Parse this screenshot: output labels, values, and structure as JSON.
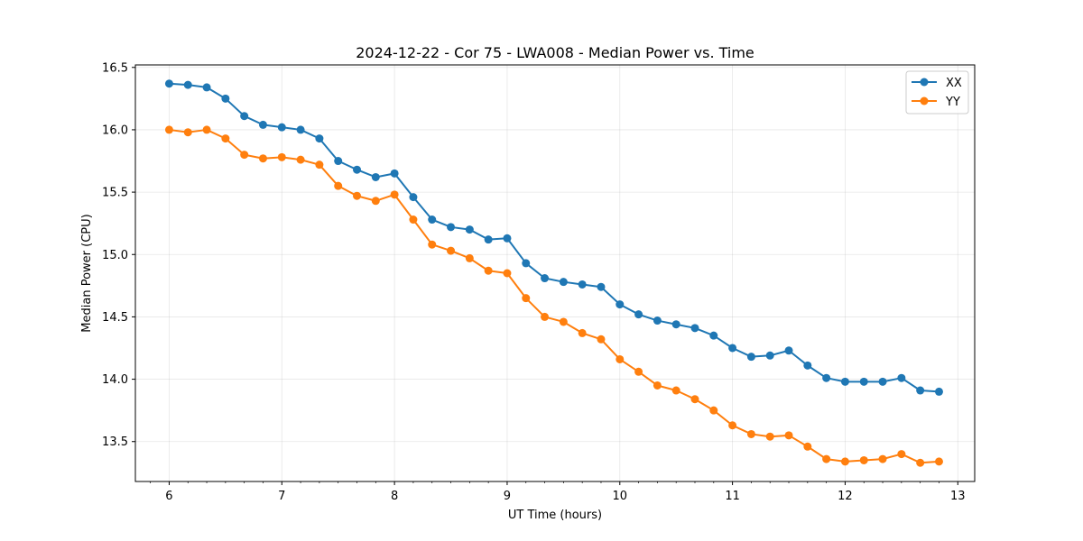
{
  "chart_data": {
    "type": "line",
    "title": "2024-12-22 - Cor 75 - LWA008 - Median Power vs. Time",
    "xlabel": "UT Time (hours)",
    "ylabel": "Median Power (CPU)",
    "xlim": [
      5.7,
      13.15
    ],
    "ylim": [
      13.18,
      16.52
    ],
    "xticks": [
      6,
      7,
      8,
      9,
      10,
      11,
      12,
      13
    ],
    "xtick_labels": [
      "6",
      "7",
      "8",
      "9",
      "10",
      "11",
      "12",
      "13"
    ],
    "yticks": [
      13.5,
      14.0,
      14.5,
      15.0,
      15.5,
      16.0,
      16.5
    ],
    "ytick_labels": [
      "13.5",
      "14.0",
      "14.5",
      "15.0",
      "15.5",
      "16.0",
      "16.5"
    ],
    "grid": true,
    "legend_position": "top-right",
    "x": [
      6.0,
      6.1667,
      6.3333,
      6.5,
      6.6667,
      6.8333,
      7.0,
      7.1667,
      7.3333,
      7.5,
      7.6667,
      7.8333,
      8.0,
      8.1667,
      8.3333,
      8.5,
      8.6667,
      8.8333,
      9.0,
      9.1667,
      9.3333,
      9.5,
      9.6667,
      9.8333,
      10.0,
      10.1667,
      10.3333,
      10.5,
      10.6667,
      10.8333,
      11.0,
      11.1667,
      11.3333,
      11.5,
      11.6667,
      11.8333,
      12.0,
      12.1667,
      12.3333,
      12.5,
      12.6667,
      12.8333
    ],
    "series": [
      {
        "name": "XX",
        "color": "#1f77b4",
        "values": [
          16.37,
          16.36,
          16.34,
          16.25,
          16.11,
          16.04,
          16.02,
          16.0,
          15.93,
          15.75,
          15.68,
          15.62,
          15.65,
          15.46,
          15.28,
          15.22,
          15.2,
          15.12,
          15.13,
          14.93,
          14.81,
          14.78,
          14.76,
          14.74,
          14.6,
          14.52,
          14.47,
          14.44,
          14.41,
          14.35,
          14.25,
          14.18,
          14.19,
          14.23,
          14.11,
          14.01,
          13.98,
          13.98,
          13.98,
          14.01,
          13.91,
          13.9
        ]
      },
      {
        "name": "YY",
        "color": "#ff7f0e",
        "values": [
          16.0,
          15.98,
          16.0,
          15.93,
          15.8,
          15.77,
          15.78,
          15.76,
          15.72,
          15.55,
          15.47,
          15.43,
          15.48,
          15.28,
          15.08,
          15.03,
          14.97,
          14.87,
          14.85,
          14.65,
          14.5,
          14.46,
          14.37,
          14.32,
          14.16,
          14.06,
          13.95,
          13.91,
          13.84,
          13.75,
          13.63,
          13.56,
          13.54,
          13.55,
          13.46,
          13.36,
          13.34,
          13.35,
          13.36,
          13.4,
          13.33,
          13.34
        ]
      }
    ]
  }
}
